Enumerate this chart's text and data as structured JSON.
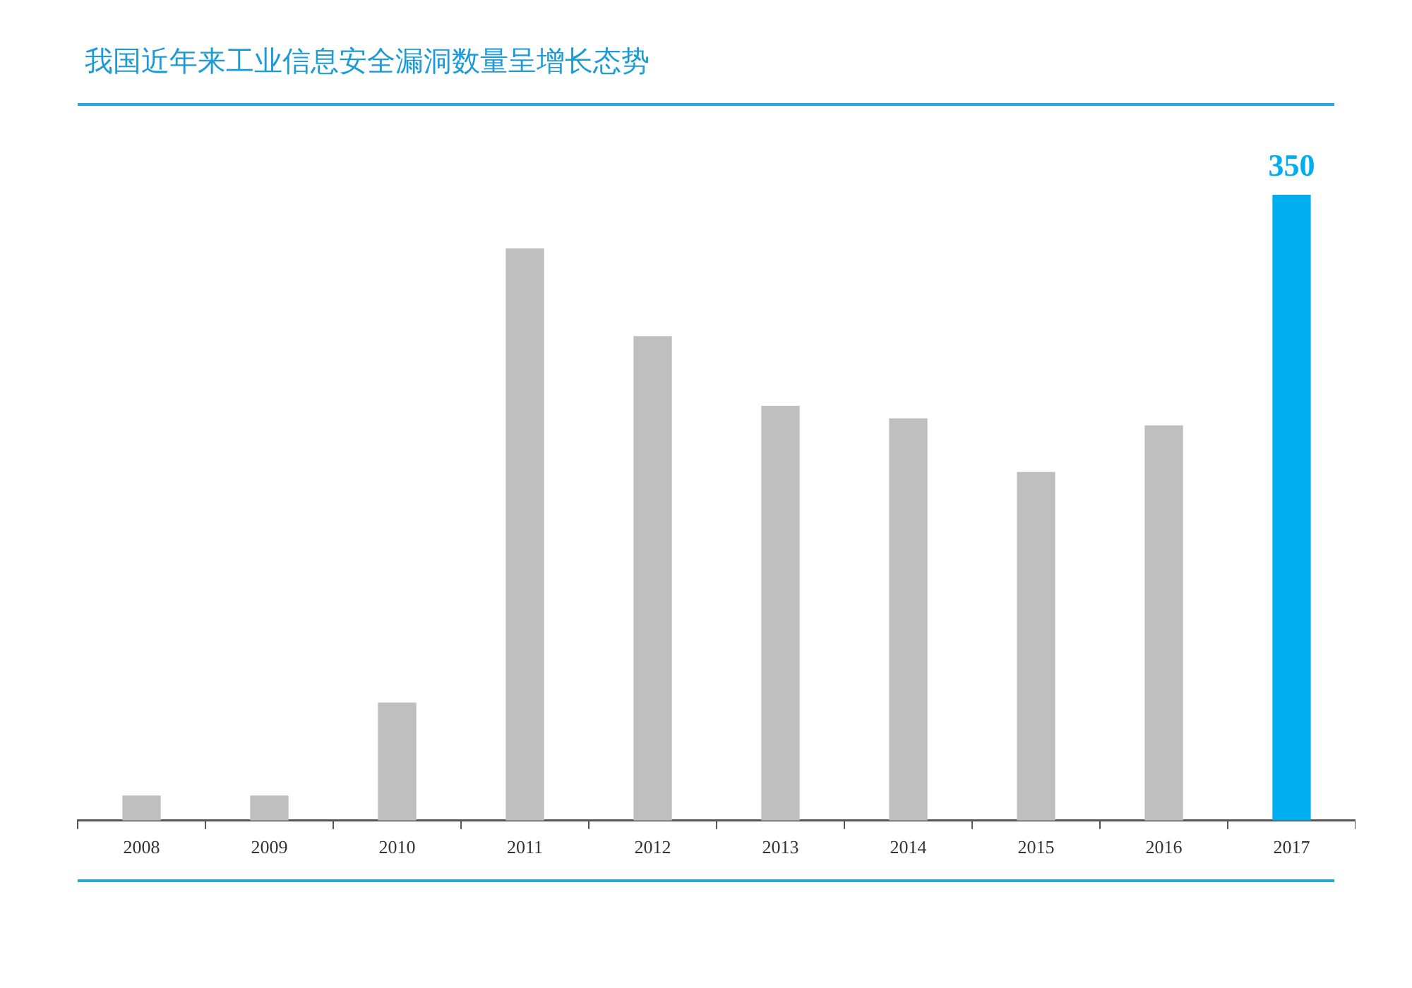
{
  "chart_data": {
    "type": "bar",
    "title": "我国近年来工业信息安全漏洞数量呈增长态势",
    "categories": [
      "2008",
      "2009",
      "2010",
      "2011",
      "2012",
      "2013",
      "2014",
      "2015",
      "2016",
      "2017"
    ],
    "values": [
      14,
      14,
      66,
      320,
      271,
      232,
      225,
      195,
      221,
      350
    ],
    "colors": [
      "#bfbfbf",
      "#bfbfbf",
      "#bfbfbf",
      "#bfbfbf",
      "#bfbfbf",
      "#bfbfbf",
      "#bfbfbf",
      "#bfbfbf",
      "#bfbfbf",
      "#00aeef"
    ],
    "value_labels": [
      null,
      null,
      null,
      null,
      null,
      null,
      null,
      null,
      null,
      "350"
    ],
    "grid": false,
    "legend": false
  }
}
